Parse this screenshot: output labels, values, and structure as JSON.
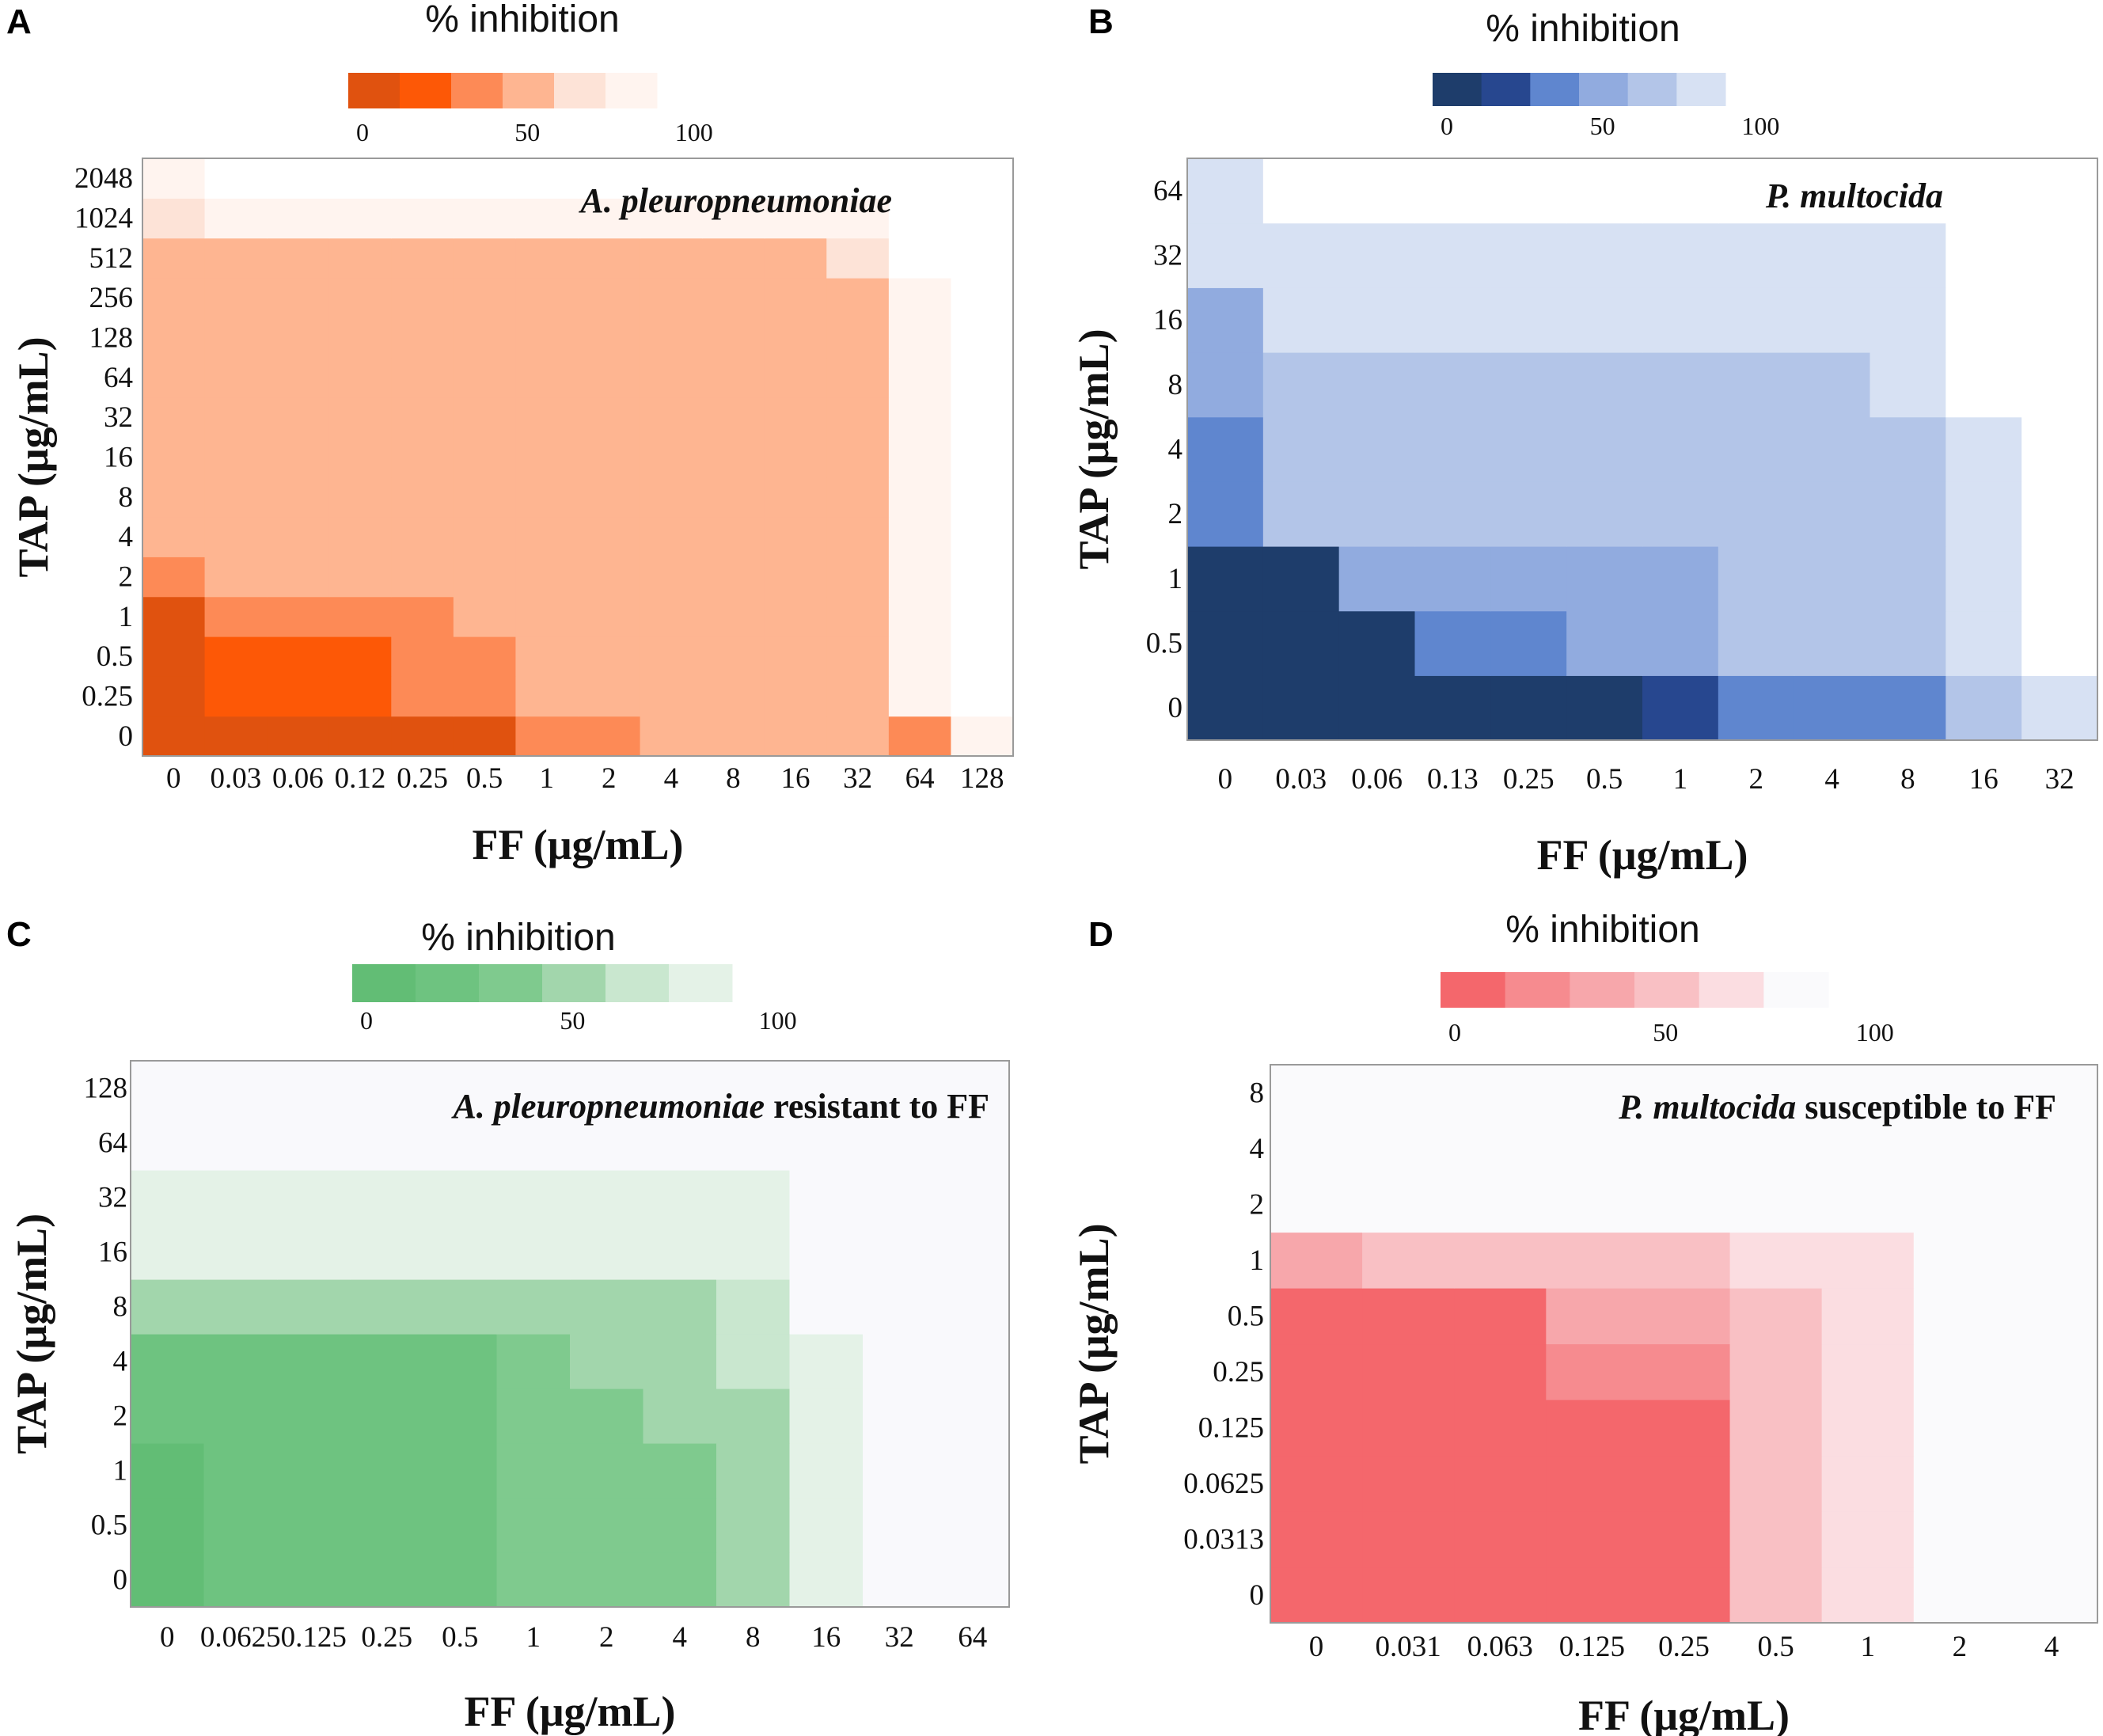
{
  "chart_data": [
    {
      "type": "heatmap",
      "panel": "A",
      "organism": "A. pleuropneumoniae",
      "organism_suffix": "",
      "colorbar_title": "% inhibition",
      "colorbar_ticks": [
        "0",
        "50",
        "100"
      ],
      "colors": [
        "#e0520f",
        "#fd5806",
        "#fd8a56",
        "#feb591",
        "#fde3d7",
        "#fff4ef",
        "#ffffff"
      ],
      "xlabel": "FF (μg/mL)",
      "ylabel": "TAP (μg/mL)",
      "x": [
        "0",
        "0.03",
        "0.06",
        "0.12",
        "0.25",
        "0.5",
        "1",
        "2",
        "4",
        "8",
        "16",
        "32",
        "64",
        "128"
      ],
      "y": [
        "0",
        "0.25",
        "0.5",
        "1",
        "2",
        "4",
        "8",
        "16",
        "32",
        "64",
        "128",
        "256",
        "512",
        "1024",
        "2048"
      ],
      "grid": [
        [
          0,
          0,
          0,
          0,
          0,
          0,
          2,
          2,
          3,
          3,
          3,
          3,
          2,
          5
        ],
        [
          0,
          1,
          1,
          1,
          2,
          2,
          3,
          3,
          3,
          3,
          3,
          3,
          5,
          6
        ],
        [
          0,
          1,
          1,
          1,
          2,
          2,
          3,
          3,
          3,
          3,
          3,
          3,
          5,
          6
        ],
        [
          0,
          2,
          2,
          2,
          2,
          3,
          3,
          3,
          3,
          3,
          3,
          3,
          5,
          6
        ],
        [
          2,
          3,
          3,
          3,
          3,
          3,
          3,
          3,
          3,
          3,
          3,
          3,
          5,
          6
        ],
        [
          3,
          3,
          3,
          3,
          3,
          3,
          3,
          3,
          3,
          3,
          3,
          3,
          5,
          6
        ],
        [
          3,
          3,
          3,
          3,
          3,
          3,
          3,
          3,
          3,
          3,
          3,
          3,
          5,
          6
        ],
        [
          3,
          3,
          3,
          3,
          3,
          3,
          3,
          3,
          3,
          3,
          3,
          3,
          5,
          6
        ],
        [
          3,
          3,
          3,
          3,
          3,
          3,
          3,
          3,
          3,
          3,
          3,
          3,
          5,
          6
        ],
        [
          3,
          3,
          3,
          3,
          3,
          3,
          3,
          3,
          3,
          3,
          3,
          3,
          5,
          6
        ],
        [
          3,
          3,
          3,
          3,
          3,
          3,
          3,
          3,
          3,
          3,
          3,
          3,
          5,
          6
        ],
        [
          3,
          3,
          3,
          3,
          3,
          3,
          3,
          3,
          3,
          3,
          3,
          3,
          5,
          6
        ],
        [
          3,
          3,
          3,
          3,
          3,
          3,
          3,
          3,
          3,
          3,
          3,
          4,
          6,
          6
        ],
        [
          4,
          5,
          5,
          5,
          5,
          5,
          5,
          5,
          5,
          5,
          5,
          5,
          6,
          6
        ],
        [
          5,
          6,
          6,
          6,
          6,
          6,
          6,
          6,
          6,
          6,
          6,
          6,
          6,
          6
        ]
      ]
    },
    {
      "type": "heatmap",
      "panel": "B",
      "organism": "P. multocida",
      "organism_suffix": "",
      "colorbar_title": "% inhibition",
      "colorbar_ticks": [
        "0",
        "50",
        "100"
      ],
      "colors": [
        "#1e3d6b",
        "#27478f",
        "#5f86cf",
        "#91abdf",
        "#b3c5e8",
        "#d7e1f3",
        "#ffffff"
      ],
      "xlabel": "FF (μg/mL)",
      "ylabel": "TAP (μg/mL)",
      "x": [
        "0",
        "0.03",
        "0.06",
        "0.13",
        "0.25",
        "0.5",
        "1",
        "2",
        "4",
        "8",
        "16",
        "32"
      ],
      "y": [
        "0",
        "0.5",
        "1",
        "2",
        "4",
        "8",
        "16",
        "32",
        "64"
      ],
      "grid": [
        [
          0,
          0,
          0,
          0,
          0,
          0,
          1,
          2,
          2,
          2,
          4,
          5
        ],
        [
          0,
          0,
          0,
          2,
          2,
          3,
          3,
          4,
          4,
          4,
          5,
          6
        ],
        [
          0,
          0,
          3,
          3,
          3,
          3,
          3,
          4,
          4,
          4,
          5,
          6
        ],
        [
          2,
          4,
          4,
          4,
          4,
          4,
          4,
          4,
          4,
          4,
          5,
          6
        ],
        [
          2,
          4,
          4,
          4,
          4,
          4,
          4,
          4,
          4,
          4,
          5,
          6
        ],
        [
          3,
          4,
          4,
          4,
          4,
          4,
          4,
          4,
          4,
          5,
          6,
          6
        ],
        [
          3,
          5,
          5,
          5,
          5,
          5,
          5,
          5,
          5,
          5,
          6,
          6
        ],
        [
          5,
          5,
          5,
          5,
          5,
          5,
          5,
          5,
          5,
          5,
          6,
          6
        ],
        [
          5,
          6,
          6,
          6,
          6,
          6,
          6,
          6,
          6,
          6,
          6,
          6
        ]
      ]
    },
    {
      "type": "heatmap",
      "panel": "C",
      "organism": "A. pleuropneumoniae",
      "organism_suffix": " resistant to FF",
      "colorbar_title": "% inhibition",
      "colorbar_ticks": [
        "0",
        "50",
        "100"
      ],
      "colors": [
        "#62bd75",
        "#6ec380",
        "#7fca8e",
        "#a2d6ac",
        "#c9e7cf",
        "#e4f2e7",
        "#f9f9fc"
      ],
      "xlabel": "FF (μg/mL)",
      "ylabel": "TAP (μg/mL)",
      "x": [
        "0",
        "0.0625",
        "0.125",
        "0.25",
        "0.5",
        "1",
        "2",
        "4",
        "8",
        "16",
        "32",
        "64"
      ],
      "y": [
        "0",
        "0.5",
        "1",
        "2",
        "4",
        "8",
        "16",
        "32",
        "64",
        "128"
      ],
      "grid": [
        [
          0,
          1,
          1,
          1,
          1,
          2,
          2,
          2,
          3,
          5,
          6,
          6
        ],
        [
          0,
          1,
          1,
          1,
          1,
          2,
          2,
          2,
          3,
          5,
          6,
          6
        ],
        [
          0,
          1,
          1,
          1,
          1,
          2,
          2,
          2,
          3,
          5,
          6,
          6
        ],
        [
          1,
          1,
          1,
          1,
          1,
          2,
          2,
          3,
          3,
          5,
          6,
          6
        ],
        [
          1,
          1,
          1,
          1,
          1,
          2,
          3,
          3,
          4,
          5,
          6,
          6
        ],
        [
          3,
          3,
          3,
          3,
          3,
          3,
          3,
          3,
          4,
          6,
          6,
          6
        ],
        [
          5,
          5,
          5,
          5,
          5,
          5,
          5,
          5,
          5,
          6,
          6,
          6
        ],
        [
          5,
          5,
          5,
          5,
          5,
          5,
          5,
          5,
          5,
          6,
          6,
          6
        ],
        [
          6,
          6,
          6,
          6,
          6,
          6,
          6,
          6,
          6,
          6,
          6,
          6
        ],
        [
          6,
          6,
          6,
          6,
          6,
          6,
          6,
          6,
          6,
          6,
          6,
          6
        ]
      ]
    },
    {
      "type": "heatmap",
      "panel": "D",
      "organism": "P. multocida",
      "organism_suffix": " susceptible to FF",
      "colorbar_title": "% inhibition",
      "colorbar_ticks": [
        "0",
        "50",
        "100"
      ],
      "colors": [
        "#f4676c",
        "#f68b8f",
        "#f7a7ab",
        "#f9c0c4",
        "#fbdde1",
        "#fafafc",
        "#f9f9fb"
      ],
      "xlabel": "FF (μg/mL)",
      "ylabel": "TAP (μg/mL)",
      "x": [
        "0",
        "0.031",
        "0.063",
        "0.125",
        "0.25",
        "0.5",
        "1",
        "2",
        "4"
      ],
      "y": [
        "0",
        "0.0313",
        "0.0625",
        "0.125",
        "0.25",
        "0.5",
        "1",
        "2",
        "4",
        "8"
      ],
      "grid": [
        [
          0,
          0,
          0,
          0,
          0,
          3,
          4,
          5,
          5
        ],
        [
          0,
          0,
          0,
          0,
          0,
          3,
          4,
          5,
          5
        ],
        [
          0,
          0,
          0,
          0,
          0,
          3,
          4,
          5,
          5
        ],
        [
          0,
          0,
          0,
          0,
          0,
          3,
          4,
          5,
          5
        ],
        [
          0,
          0,
          0,
          1,
          1,
          3,
          4,
          5,
          5
        ],
        [
          0,
          0,
          0,
          2,
          2,
          3,
          4,
          5,
          5
        ],
        [
          2,
          3,
          3,
          3,
          3,
          4,
          4,
          5,
          5
        ],
        [
          5,
          5,
          5,
          5,
          5,
          5,
          5,
          5,
          5
        ],
        [
          5,
          5,
          5,
          5,
          5,
          5,
          5,
          5,
          5
        ],
        [
          5,
          5,
          5,
          5,
          5,
          5,
          5,
          5,
          5
        ]
      ]
    }
  ]
}
